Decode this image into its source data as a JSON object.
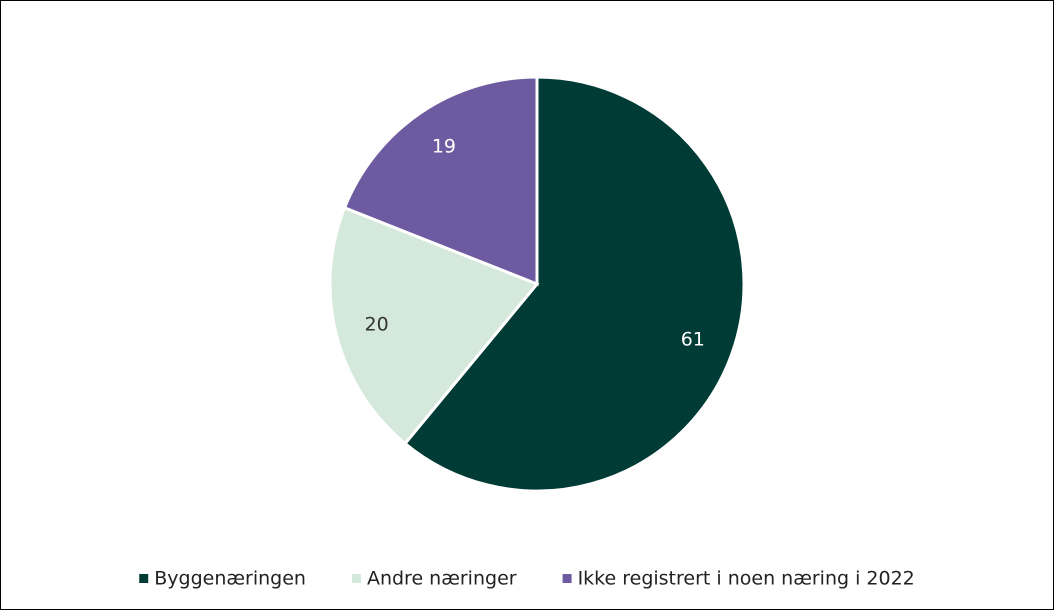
{
  "chart_data": {
    "type": "pie",
    "categories": [
      "Byggenæringen",
      "Andre næringer",
      "Ikke registrert i noen næring i 2022"
    ],
    "values": [
      61,
      20,
      19
    ],
    "colors": [
      "#003b36",
      "#d5e8dc",
      "#6e5aa0"
    ]
  }
}
